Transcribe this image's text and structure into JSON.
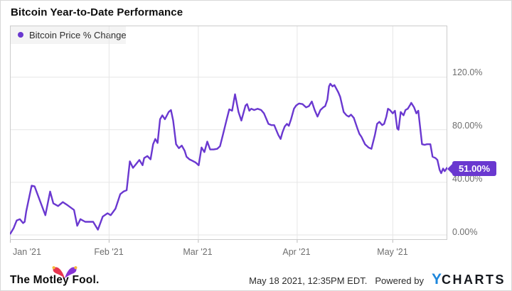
{
  "title": "Bitcoin Year-to-Date Performance",
  "legend": {
    "series_label": "Bitcoin Price % Change"
  },
  "end_label": "51.00%",
  "footer": {
    "brand": "The Motley Fool.",
    "timestamp": "May 18 2021, 12:35PM EDT.",
    "powered_by": "Powered by",
    "ycharts_y": "Y",
    "ycharts_rest": "CHARTS"
  },
  "colors": {
    "line": "#6A38D0",
    "badge_bg": "#6A38D0",
    "legend_dot": "#6A38D0",
    "grid": "#e6e6e6",
    "plot_border": "#cccccc",
    "tick": "#bbbbbb",
    "axis_text": "#6e6e6e",
    "ycharts_blue": "#1E87DC",
    "fool_pink": "#E8364F",
    "fool_purple": "#8633D6",
    "fool_gold": "#F5B93E"
  },
  "chart_data": {
    "type": "line",
    "title": "Bitcoin Year-to-Date Performance",
    "x_unit": "day of 2021 (1 = Jan 1, 138 = May 18)",
    "x_range": [
      1,
      138
    ],
    "x_ticks": [
      {
        "day": 1,
        "label": "Jan '21"
      },
      {
        "day": 32,
        "label": "Feb '21"
      },
      {
        "day": 60,
        "label": "Mar '21"
      },
      {
        "day": 91,
        "label": "Apr '21"
      },
      {
        "day": 121,
        "label": "May '21"
      }
    ],
    "y_ticks": [
      {
        "value": 0,
        "label": "0.00%"
      },
      {
        "value": 40,
        "label": "40.00%"
      },
      {
        "value": 80,
        "label": "80.00%"
      },
      {
        "value": 120,
        "label": "120.0%"
      }
    ],
    "ylim": [
      -3.5,
      159
    ],
    "grid": true,
    "legend_position": "top-left",
    "last_value": 51.0,
    "series": [
      {
        "name": "Bitcoin Price % Change",
        "points": [
          [
            1,
            1
          ],
          [
            2,
            5
          ],
          [
            3,
            11
          ],
          [
            4,
            12
          ],
          [
            5,
            9
          ],
          [
            5.5,
            10
          ],
          [
            6,
            18
          ],
          [
            6.7,
            26
          ],
          [
            7.7,
            37.5
          ],
          [
            8.6,
            37
          ],
          [
            10,
            28
          ],
          [
            12,
            15
          ],
          [
            13.5,
            33
          ],
          [
            14.5,
            24
          ],
          [
            16,
            22
          ],
          [
            17.5,
            25
          ],
          [
            19,
            22.5
          ],
          [
            21,
            19
          ],
          [
            22,
            7
          ],
          [
            23,
            12
          ],
          [
            24.5,
            10
          ],
          [
            27,
            10
          ],
          [
            28.5,
            4
          ],
          [
            30,
            14
          ],
          [
            31.5,
            16.5
          ],
          [
            32.5,
            15
          ],
          [
            34,
            20
          ],
          [
            35.5,
            31
          ],
          [
            36.5,
            33
          ],
          [
            37.5,
            34
          ],
          [
            38.5,
            56
          ],
          [
            39.5,
            51
          ],
          [
            40.5,
            54
          ],
          [
            41.5,
            57
          ],
          [
            42.5,
            53
          ],
          [
            43,
            58.5
          ],
          [
            44,
            60
          ],
          [
            45,
            57.5
          ],
          [
            45.8,
            69
          ],
          [
            46.5,
            73
          ],
          [
            47.2,
            70
          ],
          [
            48,
            88
          ],
          [
            48.7,
            91
          ],
          [
            49.5,
            88
          ],
          [
            50.7,
            93.5
          ],
          [
            51.4,
            95
          ],
          [
            52.1,
            87
          ],
          [
            53,
            69
          ],
          [
            53.9,
            66
          ],
          [
            54.8,
            68
          ],
          [
            55.7,
            64
          ],
          [
            56.3,
            59.5
          ],
          [
            57.2,
            57.5
          ],
          [
            58.1,
            56.5
          ],
          [
            59.2,
            55
          ],
          [
            60.1,
            53
          ],
          [
            61,
            66.5
          ],
          [
            61.9,
            63
          ],
          [
            62.8,
            71
          ],
          [
            63.7,
            65
          ],
          [
            64.8,
            65
          ],
          [
            65.9,
            65.5
          ],
          [
            66.8,
            67.5
          ],
          [
            67.7,
            76
          ],
          [
            68.8,
            87
          ],
          [
            69.7,
            95.5
          ],
          [
            70.6,
            94.5
          ],
          [
            71.5,
            107
          ],
          [
            72.6,
            93.5
          ],
          [
            73.5,
            87
          ],
          [
            74.8,
            98.5
          ],
          [
            75.3,
            99.5
          ],
          [
            76,
            94.5
          ],
          [
            76.6,
            96
          ],
          [
            77.5,
            95
          ],
          [
            78.6,
            96
          ],
          [
            79.7,
            95
          ],
          [
            80.6,
            92.5
          ],
          [
            82,
            84.5
          ],
          [
            82.9,
            83.5
          ],
          [
            83.8,
            83.5
          ],
          [
            84.4,
            80
          ],
          [
            85.1,
            76
          ],
          [
            85.8,
            73
          ],
          [
            86.4,
            78
          ],
          [
            87.1,
            82.5
          ],
          [
            87.8,
            84.5
          ],
          [
            88.4,
            83
          ],
          [
            89.1,
            88
          ],
          [
            90,
            96
          ],
          [
            90.7,
            98.5
          ],
          [
            91.6,
            100
          ],
          [
            92.7,
            99.5
          ],
          [
            93.8,
            97
          ],
          [
            94.7,
            98
          ],
          [
            95.6,
            101.5
          ],
          [
            96.5,
            95
          ],
          [
            97.4,
            90
          ],
          [
            98.3,
            95
          ],
          [
            99.2,
            97
          ],
          [
            99.8,
            98
          ],
          [
            100.5,
            103
          ],
          [
            101,
            113
          ],
          [
            101.4,
            115
          ],
          [
            102.1,
            113
          ],
          [
            102.7,
            114
          ],
          [
            103.9,
            108.5
          ],
          [
            104.5,
            105
          ],
          [
            105.6,
            93.5
          ],
          [
            106.5,
            91
          ],
          [
            107.2,
            90
          ],
          [
            107.9,
            91.5
          ],
          [
            108.8,
            89
          ],
          [
            109.9,
            81
          ],
          [
            110.5,
            77
          ],
          [
            111.2,
            74.5
          ],
          [
            112.3,
            69
          ],
          [
            113.4,
            66.5
          ],
          [
            114.3,
            65.5
          ],
          [
            115.4,
            76
          ],
          [
            116.1,
            84.5
          ],
          [
            116.8,
            86
          ],
          [
            117.7,
            83.5
          ],
          [
            118.3,
            84.5
          ],
          [
            119,
            90
          ],
          [
            119.5,
            96
          ],
          [
            120.1,
            95
          ],
          [
            121,
            92.5
          ],
          [
            121.7,
            94.5
          ],
          [
            122.4,
            81
          ],
          [
            122.8,
            80
          ],
          [
            123.5,
            93.5
          ],
          [
            124.4,
            91
          ],
          [
            125,
            95
          ],
          [
            125.7,
            96
          ],
          [
            126.6,
            99.5
          ],
          [
            126.8,
            100.5
          ],
          [
            127.7,
            97
          ],
          [
            128.4,
            92.5
          ],
          [
            129,
            94.5
          ],
          [
            130.2,
            69
          ],
          [
            131,
            68.5
          ],
          [
            131.7,
            69
          ],
          [
            132.8,
            69
          ],
          [
            133.5,
            59.5
          ],
          [
            134.4,
            58.5
          ],
          [
            135,
            57
          ],
          [
            135.7,
            49.5
          ],
          [
            136.2,
            47
          ],
          [
            136.8,
            50.5
          ],
          [
            137.3,
            48.5
          ],
          [
            138,
            51
          ]
        ]
      }
    ]
  }
}
